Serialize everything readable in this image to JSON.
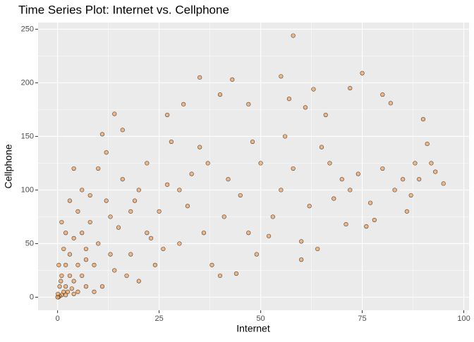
{
  "chart_data": {
    "type": "scatter",
    "title": "Time Series Plot: Internet vs. Cellphone",
    "x_label": "Internet",
    "y_label": "Cellphone",
    "color": "#f4a460",
    "edge_color": "#000000",
    "grid": true,
    "xlim": [
      -4.8,
      101.3
    ],
    "ylim": [
      -12.2,
      256.2
    ],
    "xticks": [
      0,
      25,
      50,
      75,
      100
    ],
    "yticks": [
      0,
      50,
      100,
      150,
      200,
      250
    ],
    "x": [
      58,
      75,
      35,
      43,
      55,
      40,
      47,
      72,
      57,
      80,
      82,
      63,
      14,
      16,
      27,
      31,
      66,
      61,
      90,
      95,
      93,
      91,
      88,
      85,
      86,
      78,
      76,
      70,
      68,
      65,
      60,
      60,
      53,
      50,
      52,
      45,
      48,
      44,
      40,
      38,
      36,
      33,
      30,
      30,
      28,
      25,
      24,
      22,
      22,
      20,
      20,
      18,
      18,
      16,
      15,
      14,
      12,
      12,
      11,
      10,
      10,
      9,
      8,
      8,
      7,
      7,
      6,
      6,
      5,
      5,
      4,
      4,
      4,
      3,
      3,
      3,
      2,
      2,
      2,
      1.5,
      1.5,
      1,
      1,
      1,
      0.5,
      0.5,
      0.3,
      0.2,
      0,
      0.1,
      0.8,
      2.5,
      3.5,
      6,
      9,
      13,
      17,
      23,
      27,
      32,
      35,
      42,
      47,
      55,
      58,
      62,
      67,
      72,
      74,
      77,
      80,
      83,
      87,
      89,
      92,
      64,
      71,
      56,
      49,
      41,
      37,
      26,
      19,
      11,
      13,
      5,
      7,
      2,
      4
    ],
    "y": [
      244,
      209,
      205,
      203,
      206,
      189,
      180,
      195,
      185,
      189,
      181,
      194,
      171,
      156,
      170,
      180,
      170,
      177,
      166,
      106,
      117,
      143,
      125,
      110,
      80,
      72,
      66,
      110,
      92,
      140,
      52,
      35,
      75,
      125,
      57,
      95,
      145,
      22,
      20,
      30,
      60,
      115,
      100,
      50,
      145,
      80,
      30,
      125,
      60,
      100,
      15,
      40,
      80,
      110,
      65,
      25,
      90,
      135,
      152,
      50,
      120,
      30,
      70,
      95,
      10,
      45,
      100,
      60,
      30,
      80,
      15,
      55,
      120,
      40,
      20,
      90,
      10,
      30,
      60,
      5,
      45,
      2,
      20,
      70,
      1,
      10,
      30,
      0,
      0,
      3,
      15,
      5,
      8,
      20,
      5,
      40,
      20,
      55,
      105,
      85,
      140,
      110,
      60,
      100,
      120,
      85,
      125,
      100,
      115,
      88,
      120,
      100,
      95,
      110,
      125,
      45,
      68,
      150,
      40,
      75,
      125,
      45,
      90,
      10,
      75,
      5,
      35,
      2,
      3
    ]
  }
}
